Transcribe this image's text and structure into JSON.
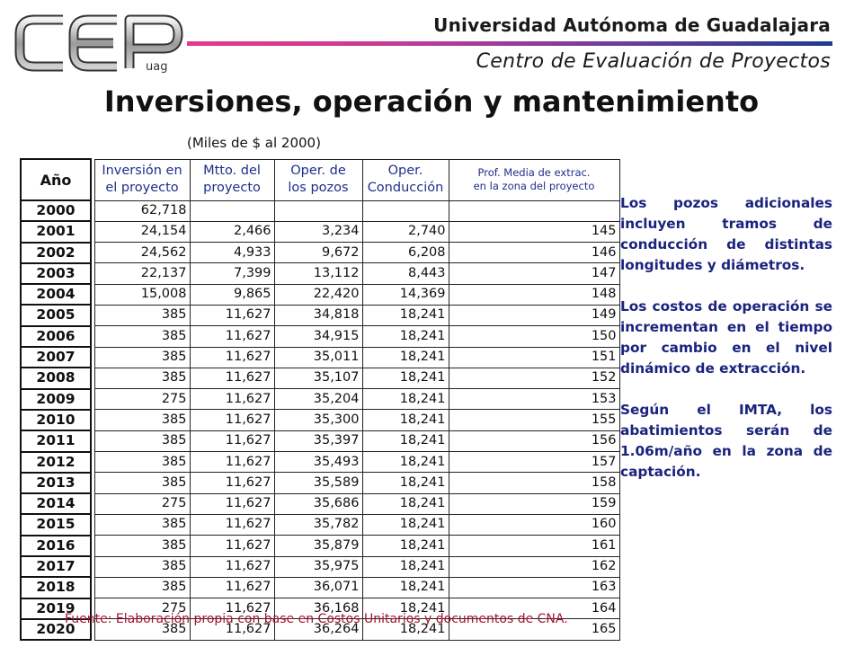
{
  "header": {
    "logo_text": "CEP",
    "logo_sub": "uag",
    "university": "Universidad Autónoma de Guadalajara",
    "center": "Centro de Evaluación de Proyectos"
  },
  "title": "Inversiones, operación y mantenimiento",
  "subtitle": "(Miles de $ al 2000)",
  "table": {
    "headers": {
      "year": "Año",
      "inversion": [
        "Inversión en",
        "el proyecto"
      ],
      "mtto": [
        "Mtto. del",
        "proyecto"
      ],
      "oper_pozos": [
        "Oper. de",
        "los pozos"
      ],
      "oper_cond": [
        "Oper.",
        "Conducción"
      ],
      "prof": [
        "Prof. Media de extrac.",
        "en la zona del proyecto"
      ]
    },
    "rows": [
      {
        "year": "2000",
        "inv": "62,718",
        "mtto": "",
        "pozos": "",
        "cond": "",
        "prof": ""
      },
      {
        "year": "2001",
        "inv": "24,154",
        "mtto": "2,466",
        "pozos": "3,234",
        "cond": "2,740",
        "prof": "145"
      },
      {
        "year": "2002",
        "inv": "24,562",
        "mtto": "4,933",
        "pozos": "9,672",
        "cond": "6,208",
        "prof": "146"
      },
      {
        "year": "2003",
        "inv": "22,137",
        "mtto": "7,399",
        "pozos": "13,112",
        "cond": "8,443",
        "prof": "147"
      },
      {
        "year": "2004",
        "inv": "15,008",
        "mtto": "9,865",
        "pozos": "22,420",
        "cond": "14,369",
        "prof": "148"
      },
      {
        "year": "2005",
        "inv": "385",
        "mtto": "11,627",
        "pozos": "34,818",
        "cond": "18,241",
        "prof": "149"
      },
      {
        "year": "2006",
        "inv": "385",
        "mtto": "11,627",
        "pozos": "34,915",
        "cond": "18,241",
        "prof": "150"
      },
      {
        "year": "2007",
        "inv": "385",
        "mtto": "11,627",
        "pozos": "35,011",
        "cond": "18,241",
        "prof": "151"
      },
      {
        "year": "2008",
        "inv": "385",
        "mtto": "11,627",
        "pozos": "35,107",
        "cond": "18,241",
        "prof": "152"
      },
      {
        "year": "2009",
        "inv": "275",
        "mtto": "11,627",
        "pozos": "35,204",
        "cond": "18,241",
        "prof": "153"
      },
      {
        "year": "2010",
        "inv": "385",
        "mtto": "11,627",
        "pozos": "35,300",
        "cond": "18,241",
        "prof": "155"
      },
      {
        "year": "2011",
        "inv": "385",
        "mtto": "11,627",
        "pozos": "35,397",
        "cond": "18,241",
        "prof": "156"
      },
      {
        "year": "2012",
        "inv": "385",
        "mtto": "11,627",
        "pozos": "35,493",
        "cond": "18,241",
        "prof": "157"
      },
      {
        "year": "2013",
        "inv": "385",
        "mtto": "11,627",
        "pozos": "35,589",
        "cond": "18,241",
        "prof": "158"
      },
      {
        "year": "2014",
        "inv": "275",
        "mtto": "11,627",
        "pozos": "35,686",
        "cond": "18,241",
        "prof": "159"
      },
      {
        "year": "2015",
        "inv": "385",
        "mtto": "11,627",
        "pozos": "35,782",
        "cond": "18,241",
        "prof": "160"
      },
      {
        "year": "2016",
        "inv": "385",
        "mtto": "11,627",
        "pozos": "35,879",
        "cond": "18,241",
        "prof": "161"
      },
      {
        "year": "2017",
        "inv": "385",
        "mtto": "11,627",
        "pozos": "35,975",
        "cond": "18,241",
        "prof": "162"
      },
      {
        "year": "2018",
        "inv": "385",
        "mtto": "11,627",
        "pozos": "36,071",
        "cond": "18,241",
        "prof": "163"
      },
      {
        "year": "2019",
        "inv": "275",
        "mtto": "11,627",
        "pozos": "36,168",
        "cond": "18,241",
        "prof": "164"
      },
      {
        "year": "2020",
        "inv": "385",
        "mtto": "11,627",
        "pozos": "36,264",
        "cond": "18,241",
        "prof": "165"
      }
    ]
  },
  "notes": [
    "Los pozos adicionales incluyen tramos de conducción de distintas longitudes y diámetros.",
    "Los costos de operación se incrementan en el tiempo por cambio en el nivel dinámico de extracción.",
    "Según el IMTA, los abatimientos serán de 1.06m/año en la zona de captación."
  ],
  "source": "Fuente: Elaboración propia con base en Costos Unitarios y documentos de CNA.",
  "colors": {
    "accent_pink": "#e53a8d",
    "accent_blue": "#1f3b8f",
    "note_text": "#1a237e",
    "header_text": "#1f2f8a",
    "source_text": "#a3122f"
  }
}
